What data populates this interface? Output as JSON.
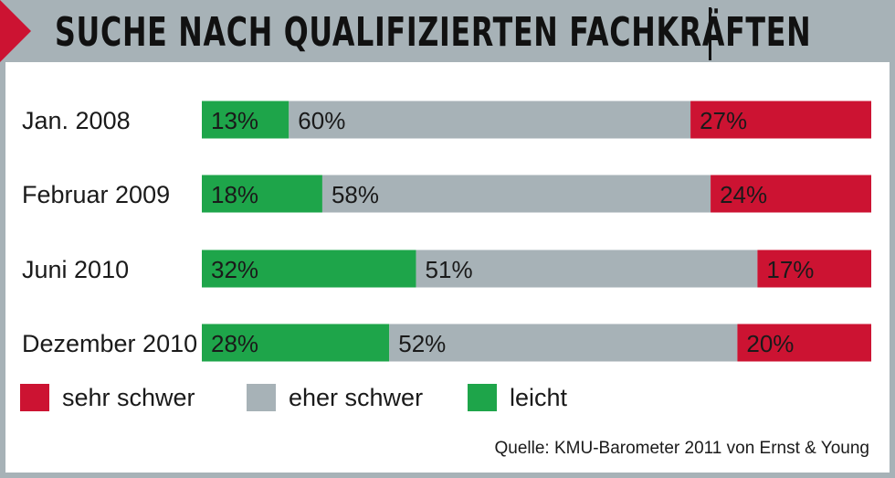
{
  "header": {
    "title": "SUCHE NACH QUALIFIZIERTEN FACHKRÄFTEN"
  },
  "colors": {
    "sehr_schwer": "#cc1332",
    "eher_schwer": "#a7b2b7",
    "leicht": "#1ea54a",
    "frame": "#a7b2b7"
  },
  "chart_data": {
    "type": "bar",
    "orientation": "horizontal",
    "stacked": true,
    "categories": [
      "Jan. 2008",
      "Februar 2009",
      "Juni 2010",
      "Dezember 2010"
    ],
    "series": [
      {
        "name": "leicht",
        "values": [
          13,
          18,
          32,
          28
        ],
        "labels": [
          "13%",
          "18%",
          "32%",
          "28%"
        ],
        "color": "#1ea54a"
      },
      {
        "name": "eher schwer",
        "values": [
          60,
          58,
          51,
          52
        ],
        "labels": [
          "60%",
          "58%",
          "51%",
          "52%"
        ],
        "color": "#a7b2b7"
      },
      {
        "name": "sehr schwer",
        "values": [
          27,
          24,
          17,
          20
        ],
        "labels": [
          "27%",
          "24%",
          "17%",
          "20%"
        ],
        "color": "#cc1332"
      }
    ],
    "xlim": [
      0,
      100
    ],
    "legend_position": "bottom-left"
  },
  "legend": {
    "items": [
      {
        "label": "sehr schwer",
        "color": "#cc1332"
      },
      {
        "label": "eher schwer",
        "color": "#a7b2b7"
      },
      {
        "label": "leicht",
        "color": "#1ea54a"
      }
    ]
  },
  "source": "Quelle: KMU-Barometer 2011 von Ernst & Young"
}
